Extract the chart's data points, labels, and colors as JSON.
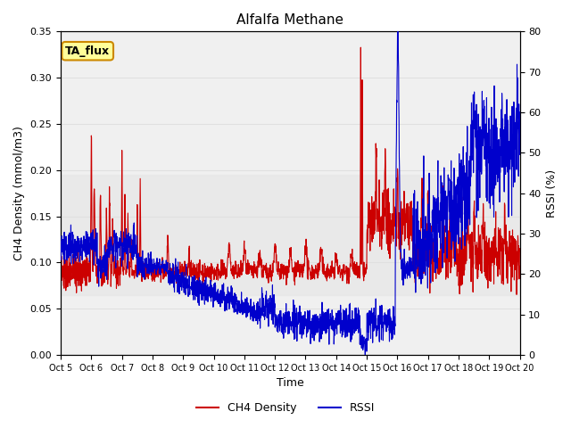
{
  "title": "Alfalfa Methane",
  "xlabel": "Time",
  "ylabel_left": "CH4 Density (mmol/m3)",
  "ylabel_right": "RSSI (%)",
  "ylim_left": [
    0.0,
    0.35
  ],
  "ylim_right": [
    0,
    80
  ],
  "yticks_left": [
    0.0,
    0.05,
    0.1,
    0.15,
    0.2,
    0.25,
    0.3,
    0.35
  ],
  "yticks_right": [
    0,
    10,
    20,
    30,
    40,
    50,
    60,
    70,
    80
  ],
  "xtick_labels": [
    "Oct 5",
    "Oct 6",
    "Oct 7",
    "Oct 8",
    "Oct 9",
    "Oct 10",
    "Oct 11",
    "Oct 12",
    "Oct 13",
    "Oct 14",
    "Oct 15",
    "Oct 16",
    "Oct 17",
    "Oct 18",
    "Oct 19",
    "Oct 20"
  ],
  "color_ch4": "#cc0000",
  "color_rssi": "#0000cc",
  "legend_labels": [
    "CH4 Density",
    "RSSI"
  ],
  "annotation_text": "TA_flux",
  "annotation_bg": "#ffff99",
  "annotation_border": "#cc8800",
  "background_color": "#ffffff",
  "grid_color": "#e0e0e0",
  "plot_bg": "#f0f0f0"
}
